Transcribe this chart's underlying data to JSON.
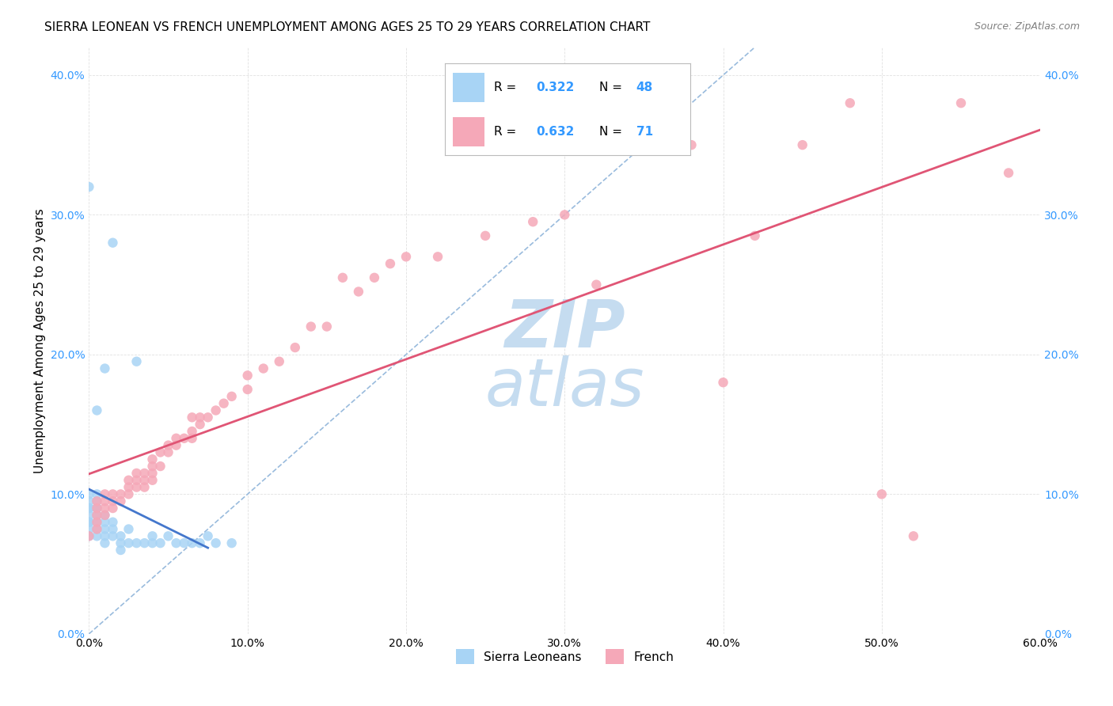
{
  "title": "SIERRA LEONEAN VS FRENCH UNEMPLOYMENT AMONG AGES 25 TO 29 YEARS CORRELATION CHART",
  "source": "Source: ZipAtlas.com",
  "ylabel": "Unemployment Among Ages 25 to 29 years",
  "xlim": [
    0.0,
    0.6
  ],
  "ylim": [
    0.0,
    0.42
  ],
  "xticks": [
    0.0,
    0.1,
    0.2,
    0.3,
    0.4,
    0.5,
    0.6
  ],
  "yticks": [
    0.0,
    0.1,
    0.2,
    0.3,
    0.4
  ],
  "legend_label1": "Sierra Leoneans",
  "legend_label2": "French",
  "R1": "0.322",
  "N1": "48",
  "R2": "0.632",
  "N2": "71",
  "color_sl": "#A8D4F5",
  "color_fr": "#F5A8B8",
  "line_color_sl": "#4477CC",
  "line_color_fr": "#E05575",
  "dashed_line_color": "#99BBDD",
  "watermark_color": "#C5DCF0",
  "sl_x": [
    0.0,
    0.0,
    0.0,
    0.0,
    0.0,
    0.0,
    0.0,
    0.0,
    0.0,
    0.0,
    0.005,
    0.005,
    0.005,
    0.005,
    0.005,
    0.005,
    0.005,
    0.005,
    0.005,
    0.01,
    0.01,
    0.01,
    0.01,
    0.01,
    0.01,
    0.015,
    0.015,
    0.015,
    0.015,
    0.02,
    0.02,
    0.02,
    0.025,
    0.025,
    0.03,
    0.03,
    0.035,
    0.04,
    0.04,
    0.045,
    0.05,
    0.055,
    0.06,
    0.065,
    0.07,
    0.075,
    0.08,
    0.09
  ],
  "sl_y": [
    0.07,
    0.075,
    0.08,
    0.08,
    0.085,
    0.09,
    0.09,
    0.095,
    0.1,
    0.32,
    0.07,
    0.075,
    0.08,
    0.085,
    0.09,
    0.09,
    0.095,
    0.1,
    0.16,
    0.065,
    0.07,
    0.075,
    0.08,
    0.085,
    0.19,
    0.07,
    0.075,
    0.08,
    0.28,
    0.06,
    0.065,
    0.07,
    0.065,
    0.075,
    0.065,
    0.195,
    0.065,
    0.065,
    0.07,
    0.065,
    0.07,
    0.065,
    0.065,
    0.065,
    0.065,
    0.07,
    0.065,
    0.065
  ],
  "fr_x": [
    0.0,
    0.005,
    0.005,
    0.005,
    0.005,
    0.005,
    0.01,
    0.01,
    0.01,
    0.01,
    0.015,
    0.015,
    0.015,
    0.02,
    0.02,
    0.025,
    0.025,
    0.025,
    0.03,
    0.03,
    0.03,
    0.035,
    0.035,
    0.035,
    0.04,
    0.04,
    0.04,
    0.04,
    0.045,
    0.045,
    0.05,
    0.05,
    0.055,
    0.055,
    0.06,
    0.065,
    0.065,
    0.065,
    0.07,
    0.07,
    0.075,
    0.08,
    0.085,
    0.09,
    0.1,
    0.1,
    0.11,
    0.12,
    0.13,
    0.14,
    0.15,
    0.16,
    0.17,
    0.18,
    0.19,
    0.2,
    0.22,
    0.25,
    0.28,
    0.3,
    0.32,
    0.35,
    0.38,
    0.4,
    0.42,
    0.45,
    0.48,
    0.5,
    0.52,
    0.55,
    0.58
  ],
  "fr_y": [
    0.07,
    0.075,
    0.08,
    0.085,
    0.09,
    0.095,
    0.085,
    0.09,
    0.095,
    0.1,
    0.09,
    0.095,
    0.1,
    0.095,
    0.1,
    0.1,
    0.105,
    0.11,
    0.105,
    0.11,
    0.115,
    0.105,
    0.11,
    0.115,
    0.11,
    0.115,
    0.12,
    0.125,
    0.12,
    0.13,
    0.13,
    0.135,
    0.135,
    0.14,
    0.14,
    0.14,
    0.145,
    0.155,
    0.15,
    0.155,
    0.155,
    0.16,
    0.165,
    0.17,
    0.175,
    0.185,
    0.19,
    0.195,
    0.205,
    0.22,
    0.22,
    0.255,
    0.245,
    0.255,
    0.265,
    0.27,
    0.27,
    0.285,
    0.295,
    0.3,
    0.25,
    0.35,
    0.35,
    0.18,
    0.285,
    0.35,
    0.38,
    0.1,
    0.07,
    0.38,
    0.33
  ],
  "title_fontsize": 11,
  "axis_label_fontsize": 11,
  "tick_fontsize": 10
}
